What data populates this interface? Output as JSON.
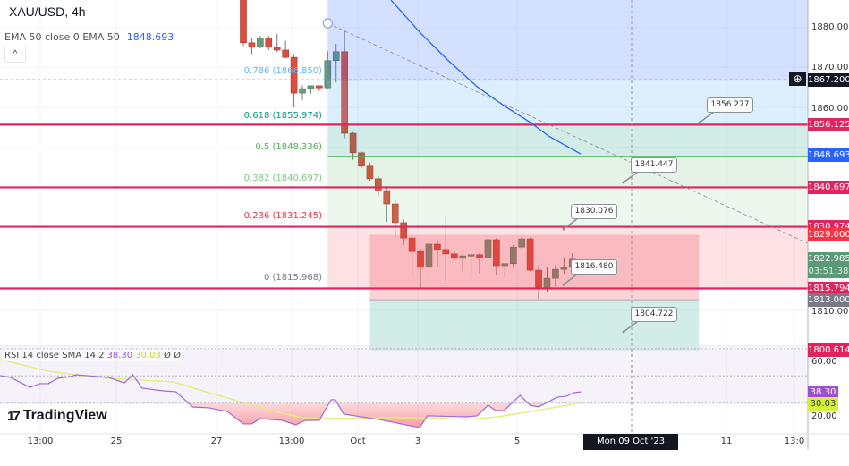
{
  "header": {
    "symbol_title": "XAU/USD, 4h",
    "collapse_icon": "chevron-up-icon"
  },
  "ema_legend": {
    "label": "EMA 50 close 0 EMA 50",
    "value": "1848.693"
  },
  "rsi_legend": {
    "label": "RSI 14 close SMA 14 2",
    "rsi_value": "38.30",
    "sma_value": "30.03",
    "extra1": "Ø",
    "extra2": "Ø"
  },
  "logo": {
    "text": "TradingView",
    "mark": "17"
  },
  "fib_levels": [
    {
      "label": "0.786 (1866.850)",
      "price": 1866.85,
      "color": "#64b5f6"
    },
    {
      "label": "0.618 (1855.974)",
      "price": 1855.974,
      "color": "#089981"
    },
    {
      "label": "0.5 (1848.336)",
      "price": 1848.336,
      "color": "#4caf50"
    },
    {
      "label": "0.382 (1840.697)",
      "price": 1840.697,
      "color": "#81c784"
    },
    {
      "label": "0.236 (1831.245)",
      "price": 1831.245,
      "color": "#f23645"
    },
    {
      "label": "0 (1815.968)",
      "price": 1815.968,
      "color": "#787b86"
    }
  ],
  "price_axis": {
    "ticks": [
      "1880.000",
      "1870.000",
      "1860.000",
      "1810.000"
    ],
    "tick_values": [
      1880,
      1870,
      1860,
      1810
    ],
    "tags": [
      {
        "text": "1867.200",
        "price": 1867.2,
        "color": "#131722"
      },
      {
        "text": "1856.125",
        "price": 1856.125,
        "color": "#e0245e"
      },
      {
        "text": "1848.693",
        "price": 1848.693,
        "color": "#2962ff"
      },
      {
        "text": "1840.697",
        "price": 1840.697,
        "color": "#e0245e"
      },
      {
        "text": "1830.974",
        "price": 1830.974,
        "color": "#e0245e"
      },
      {
        "text": "1829.000",
        "price": 1829.0,
        "color": "#f23645"
      },
      {
        "text": "1815.794",
        "price": 1815.794,
        "color": "#e0245e"
      },
      {
        "text": "1813.000",
        "price": 1813.0,
        "color": "#787b86"
      },
      {
        "text": "1800.614",
        "price": 1800.614,
        "color": "#e0245e"
      }
    ],
    "last_price": {
      "text": "1822.985",
      "countdown": "03:51:38",
      "color": "#5b9a77"
    }
  },
  "rsi_axis": {
    "ticks": [
      "60.00",
      "20.00"
    ],
    "tick_values": [
      60,
      20
    ],
    "rsi_tag": "38.30",
    "sma_tag": "30.03",
    "rsi_color": "#9c4fcf",
    "sma_color": "#d7f03c"
  },
  "time_axis": {
    "labels": [
      "13:00",
      "25",
      "27",
      "13:00",
      "Oct",
      "3",
      "5",
      "11",
      "13:0"
    ],
    "cursor_label": "Mon 09 Oct '23   05:00"
  },
  "callouts": [
    "1856.277",
    "1841.447",
    "1830.076",
    "1816.480",
    "1804.722"
  ],
  "horizontal_lines": [
    1856.125,
    1840.697,
    1830.974,
    1815.794
  ],
  "colors": {
    "up": "#6a9a7b",
    "down": "#d9503f",
    "hline": "#e0245e",
    "ema": "#2962ff"
  },
  "chart_data": {
    "type": "candlestick",
    "title": "XAU/USD, 4h",
    "ylim": [
      1796,
      1887
    ],
    "candles_ohlc": [
      [
        1893,
        1895,
        1875.5,
        1876.3
      ],
      [
        1876.3,
        1877.5,
        1873.5,
        1875.2
      ],
      [
        1875.2,
        1878,
        1875,
        1877.4
      ],
      [
        1877.4,
        1878,
        1874.5,
        1875.2
      ],
      [
        1875.2,
        1878.5,
        1874,
        1874.5
      ],
      [
        1874.5,
        1876.8,
        1872.5,
        1872.7
      ],
      [
        1872.7,
        1873.5,
        1860.4,
        1863.9
      ],
      [
        1863.9,
        1865.8,
        1862.2,
        1865.0
      ],
      [
        1865.0,
        1865.8,
        1863.8,
        1865.7
      ],
      [
        1865.7,
        1865.8,
        1864.4,
        1865.2
      ],
      [
        1865.2,
        1874.2,
        1864.9,
        1871.9
      ],
      [
        1871.9,
        1876,
        1866.5,
        1874.1
      ],
      [
        1874.1,
        1879.3,
        1852.8,
        1854.0
      ],
      [
        1854.0,
        1854.3,
        1847.5,
        1849.2
      ],
      [
        1849.2,
        1849.5,
        1845.5,
        1845.9
      ],
      [
        1845.9,
        1846.8,
        1842.3,
        1842.8
      ],
      [
        1842.8,
        1843.5,
        1838.5,
        1839.9
      ],
      [
        1839.9,
        1841,
        1832.2,
        1836.6
      ],
      [
        1836.6,
        1837.5,
        1828.5,
        1832.0
      ],
      [
        1832.0,
        1832.8,
        1826.5,
        1828.2
      ],
      [
        1828.2,
        1828.8,
        1818.5,
        1824.9
      ],
      [
        1824.9,
        1825.5,
        1815.8,
        1821.0
      ],
      [
        1821.0,
        1827.8,
        1818.5,
        1826.7
      ],
      [
        1826.7,
        1827.9,
        1820.9,
        1825.4
      ],
      [
        1825.4,
        1833.7,
        1817.5,
        1824.3
      ],
      [
        1824.3,
        1825,
        1822.5,
        1823.2
      ],
      [
        1823.2,
        1824.2,
        1820,
        1823.8
      ],
      [
        1823.8,
        1824.3,
        1818,
        1824.1
      ],
      [
        1824.1,
        1824.5,
        1819.5,
        1823.4
      ],
      [
        1823.4,
        1829.5,
        1821.5,
        1827.8
      ],
      [
        1827.8,
        1828.2,
        1819,
        1821.4
      ],
      [
        1821.4,
        1822,
        1818.5,
        1821.9
      ],
      [
        1821.9,
        1826.5,
        1821,
        1826.0
      ],
      [
        1826.0,
        1828.5,
        1825.5,
        1828.0
      ],
      [
        1828.0,
        1828.3,
        1820,
        1820.3
      ],
      [
        1820.3,
        1821.5,
        1813.2,
        1816.1
      ],
      [
        1816.1,
        1821,
        1815,
        1818.3
      ],
      [
        1818.3,
        1821.5,
        1816.2,
        1820.5
      ],
      [
        1820.5,
        1823.5,
        1819.5,
        1821.0
      ],
      [
        1821.0,
        1824.5,
        1820,
        1823.0
      ]
    ],
    "ema50": {
      "bar": [
        17.5,
        21,
        24.2,
        27.7,
        30.9,
        34,
        36.2,
        40
      ],
      "value": [
        1886.8,
        1878.7,
        1872.1,
        1865.5,
        1860.8,
        1856.7,
        1853.3,
        1848.9
      ]
    },
    "trendline": {
      "bar": [
        10,
        66.9
      ],
      "price": [
        1881.1,
        1826.9
      ]
    },
    "fib_zone_bars": [
      10,
      67
    ],
    "position_tool": {
      "bars": [
        15,
        54
      ],
      "entry": 1813.0,
      "stop": 1829.0,
      "target": 1800.614
    },
    "rsi": {
      "bar": [
        -28.8,
        -27.6,
        -25.3,
        -24.1,
        -23.1,
        -22,
        -20.5,
        -19.8,
        -18.6,
        -16,
        -14.1,
        -13.1,
        -12,
        -9.5,
        -8,
        -6,
        -4.1,
        -1.9,
        0,
        1,
        2,
        4.6,
        6.2,
        7.4,
        9,
        10.4,
        10.9,
        11.9,
        16.1,
        20.9,
        21.8,
        26.4,
        27.7,
        29,
        29.9,
        30.9,
        32.8,
        34,
        35,
        37.2,
        38.3,
        39.2,
        40
      ],
      "value": [
        50.2,
        48.9,
        41.6,
        44.3,
        44.3,
        48.2,
        49.5,
        50.8,
        50.2,
        48.9,
        44.9,
        50.8,
        41,
        39,
        38.4,
        27.2,
        26.6,
        23.9,
        14.8,
        14.8,
        18.7,
        17.4,
        14.1,
        17.4,
        17.4,
        32.5,
        32.5,
        22,
        18,
        12.1,
        20.7,
        20,
        20.7,
        28.5,
        24.6,
        24.6,
        35.7,
        28.5,
        27.2,
        34.4,
        35.1,
        37.7,
        38.3
      ]
    },
    "rsi_sma": {
      "bar": [
        -28.8,
        -23.1,
        -19.8,
        -16,
        -12.2,
        -8.3,
        -4.5,
        0,
        4.6,
        7.1,
        9.6,
        16.1,
        22.5,
        26.4,
        30.2,
        34,
        39.9
      ],
      "value": [
        62,
        53.4,
        50.8,
        48.2,
        46.9,
        45.6,
        38.4,
        30.5,
        22.6,
        19.3,
        18.7,
        19.3,
        19.3,
        18,
        20,
        23.9,
        30.03
      ]
    },
    "rsi_levels": [
      70,
      50,
      30
    ]
  }
}
